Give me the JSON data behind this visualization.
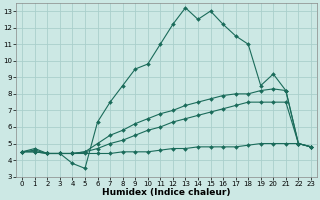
{
  "title": "",
  "xlabel": "Humidex (Indice chaleur)",
  "background_color": "#cce8e4",
  "grid_color": "#aacfcc",
  "line_color": "#1a6b5a",
  "xlim": [
    -0.5,
    23.5
  ],
  "ylim": [
    3,
    13.5
  ],
  "yticks": [
    3,
    4,
    5,
    6,
    7,
    8,
    9,
    10,
    11,
    12,
    13
  ],
  "xticks": [
    0,
    1,
    2,
    3,
    4,
    5,
    6,
    7,
    8,
    9,
    10,
    11,
    12,
    13,
    14,
    15,
    16,
    17,
    18,
    19,
    20,
    21,
    22,
    23
  ],
  "series1_x": [
    0,
    1,
    2,
    3,
    4,
    5,
    6,
    7,
    8,
    9,
    10,
    11,
    12,
    13,
    14,
    15,
    16,
    17,
    18,
    19,
    20,
    21,
    22,
    23
  ],
  "series1_y": [
    4.5,
    4.7,
    4.4,
    4.4,
    3.8,
    3.5,
    6.3,
    7.5,
    8.5,
    9.5,
    9.8,
    11.0,
    12.2,
    13.2,
    12.5,
    13.0,
    12.2,
    11.5,
    11.0,
    8.5,
    9.2,
    8.2,
    5.0,
    4.8
  ],
  "series2_x": [
    0,
    1,
    2,
    3,
    4,
    5,
    6,
    7,
    8,
    9,
    10,
    11,
    12,
    13,
    14,
    15,
    16,
    17,
    18,
    19,
    20,
    21,
    22,
    23
  ],
  "series2_y": [
    4.5,
    4.6,
    4.4,
    4.4,
    4.4,
    4.5,
    5.0,
    5.5,
    5.8,
    6.2,
    6.5,
    6.8,
    7.0,
    7.3,
    7.5,
    7.7,
    7.9,
    8.0,
    8.0,
    8.2,
    8.3,
    8.2,
    5.0,
    4.8
  ],
  "series3_x": [
    0,
    1,
    2,
    3,
    4,
    5,
    6,
    7,
    8,
    9,
    10,
    11,
    12,
    13,
    14,
    15,
    16,
    17,
    18,
    19,
    20,
    21,
    22,
    23
  ],
  "series3_y": [
    4.5,
    4.5,
    4.4,
    4.4,
    4.4,
    4.5,
    4.7,
    5.0,
    5.2,
    5.5,
    5.8,
    6.0,
    6.3,
    6.5,
    6.7,
    6.9,
    7.1,
    7.3,
    7.5,
    7.5,
    7.5,
    7.5,
    5.0,
    4.8
  ],
  "series4_x": [
    0,
    1,
    2,
    3,
    4,
    5,
    6,
    7,
    8,
    9,
    10,
    11,
    12,
    13,
    14,
    15,
    16,
    17,
    18,
    19,
    20,
    21,
    22,
    23
  ],
  "series4_y": [
    4.5,
    4.5,
    4.4,
    4.4,
    4.4,
    4.4,
    4.4,
    4.4,
    4.5,
    4.5,
    4.5,
    4.6,
    4.7,
    4.7,
    4.8,
    4.8,
    4.8,
    4.8,
    4.9,
    5.0,
    5.0,
    5.0,
    5.0,
    4.8
  ]
}
